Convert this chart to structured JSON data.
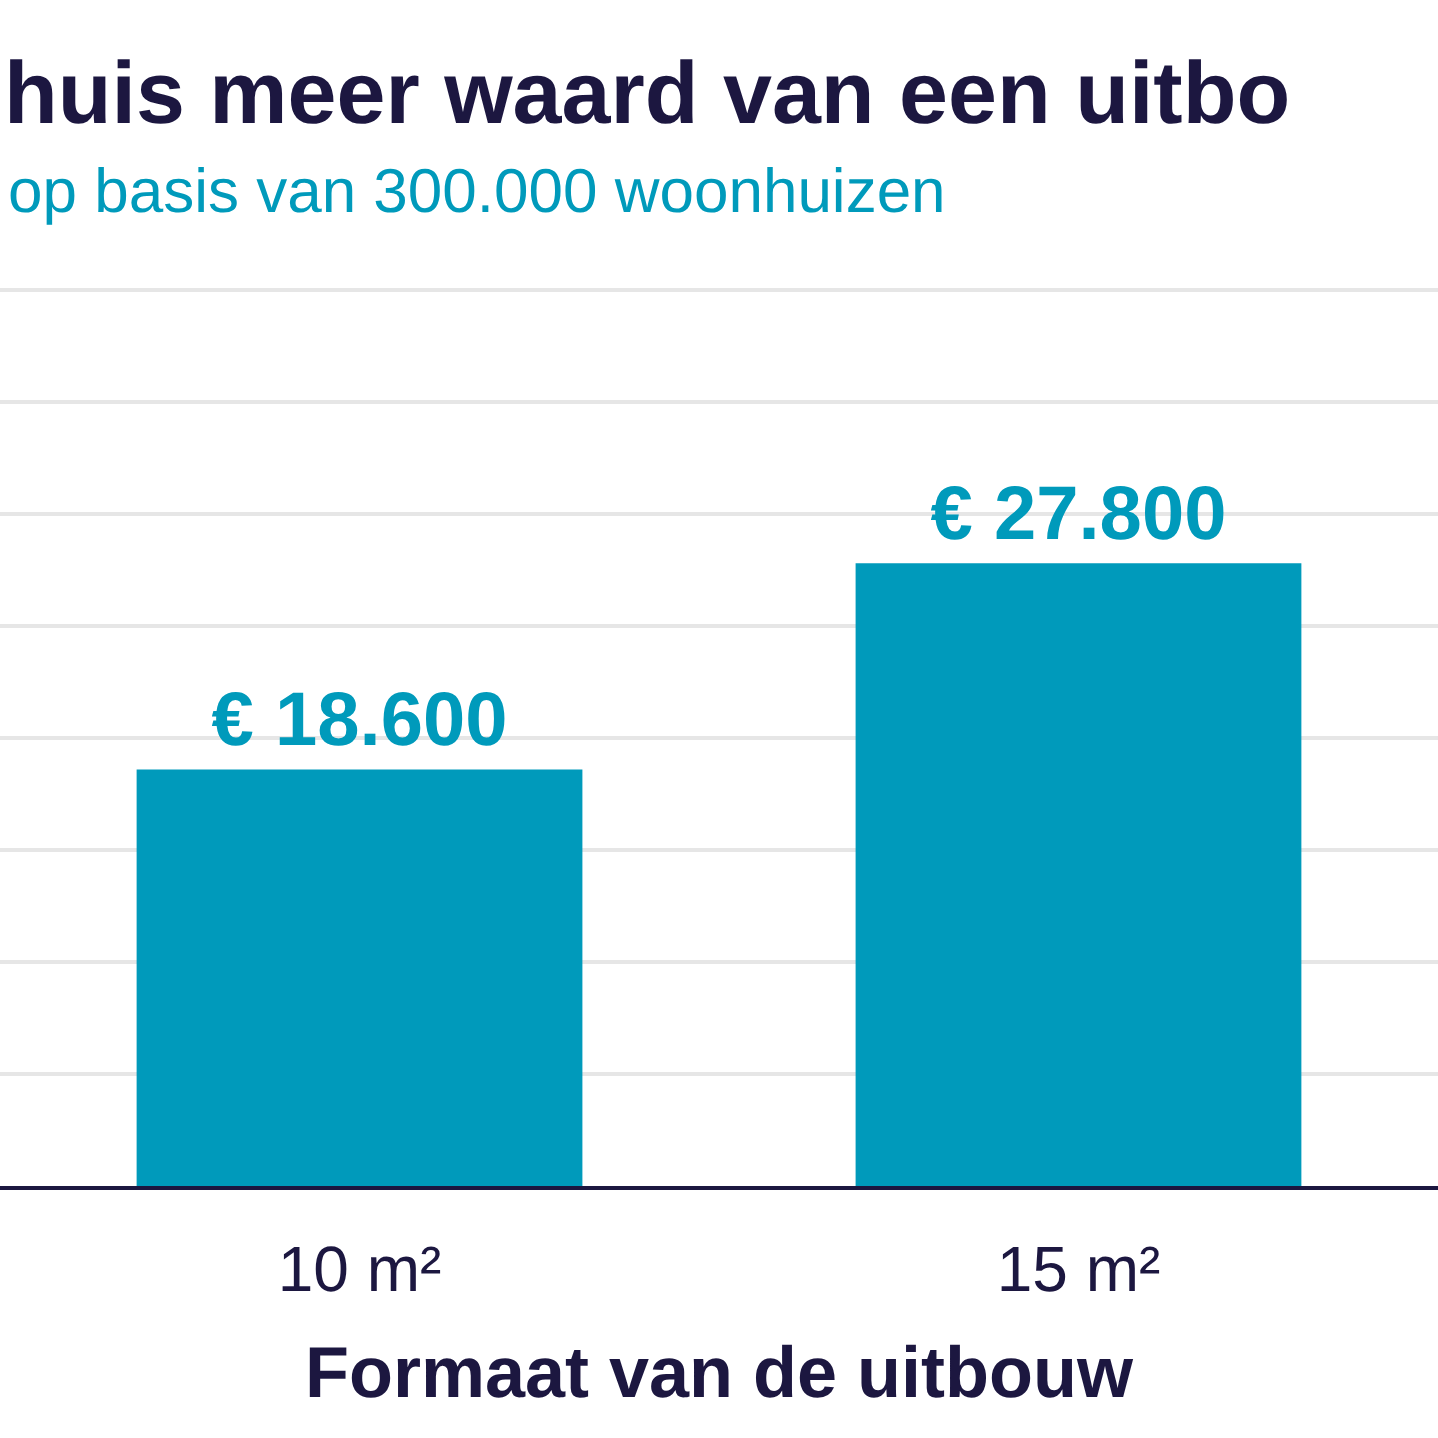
{
  "chart_data": {
    "type": "bar",
    "title": "huis meer waard van een uitbo",
    "subtitle": "op basis van 300.000 woonhuizen",
    "xlabel": "Formaat van de uitbouw",
    "categories": [
      "10 m²",
      "15 m²"
    ],
    "values": [
      18600,
      27800
    ],
    "color": "#009abb",
    "value_labels": [
      "€ 18.600",
      "€ 27.800"
    ],
    "grid": "y",
    "tick_labels": "x"
  }
}
